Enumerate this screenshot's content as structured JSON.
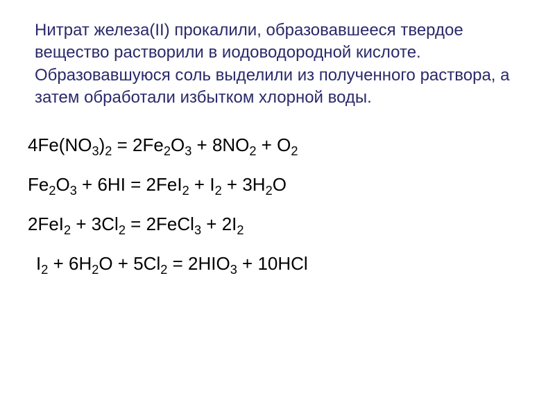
{
  "problem": {
    "text": "Нитрат железа(II) прокалили, образовавшееся твердое вещество растворили в иодоводородной кислоте. Образовавшуюся соль выделили из полученного раствора, а затем обработали избытком хлорной воды.",
    "text_color": "#2a2a6a",
    "fontsize": 24
  },
  "equations": {
    "items": [
      {
        "formula_html": "4Fe(NO<sub>3</sub>)<sub>2</sub> = 2Fe<sub>2</sub>O<sub>3</sub> + 8NO<sub>2</sub> + O<sub>2</sub>",
        "indent": false
      },
      {
        "formula_html": "Fe<sub>2</sub>O<sub>3</sub> + 6HI = 2FeI<sub>2</sub> + I<sub>2</sub> + 3H<sub>2</sub>O",
        "indent": false
      },
      {
        "formula_html": "2FeI<sub>2</sub> + 3Cl<sub>2</sub> = 2FeCl<sub>3</sub> + 2I<sub>2</sub>",
        "indent": false
      },
      {
        "formula_html": "I<sub>2</sub> + 6H<sub>2</sub>O + 5Cl<sub>2</sub> = 2HIO<sub>3</sub> + 10HCl",
        "indent": true
      }
    ],
    "text_color": "#000000",
    "fontsize": 26
  },
  "background_color": "#ffffff"
}
